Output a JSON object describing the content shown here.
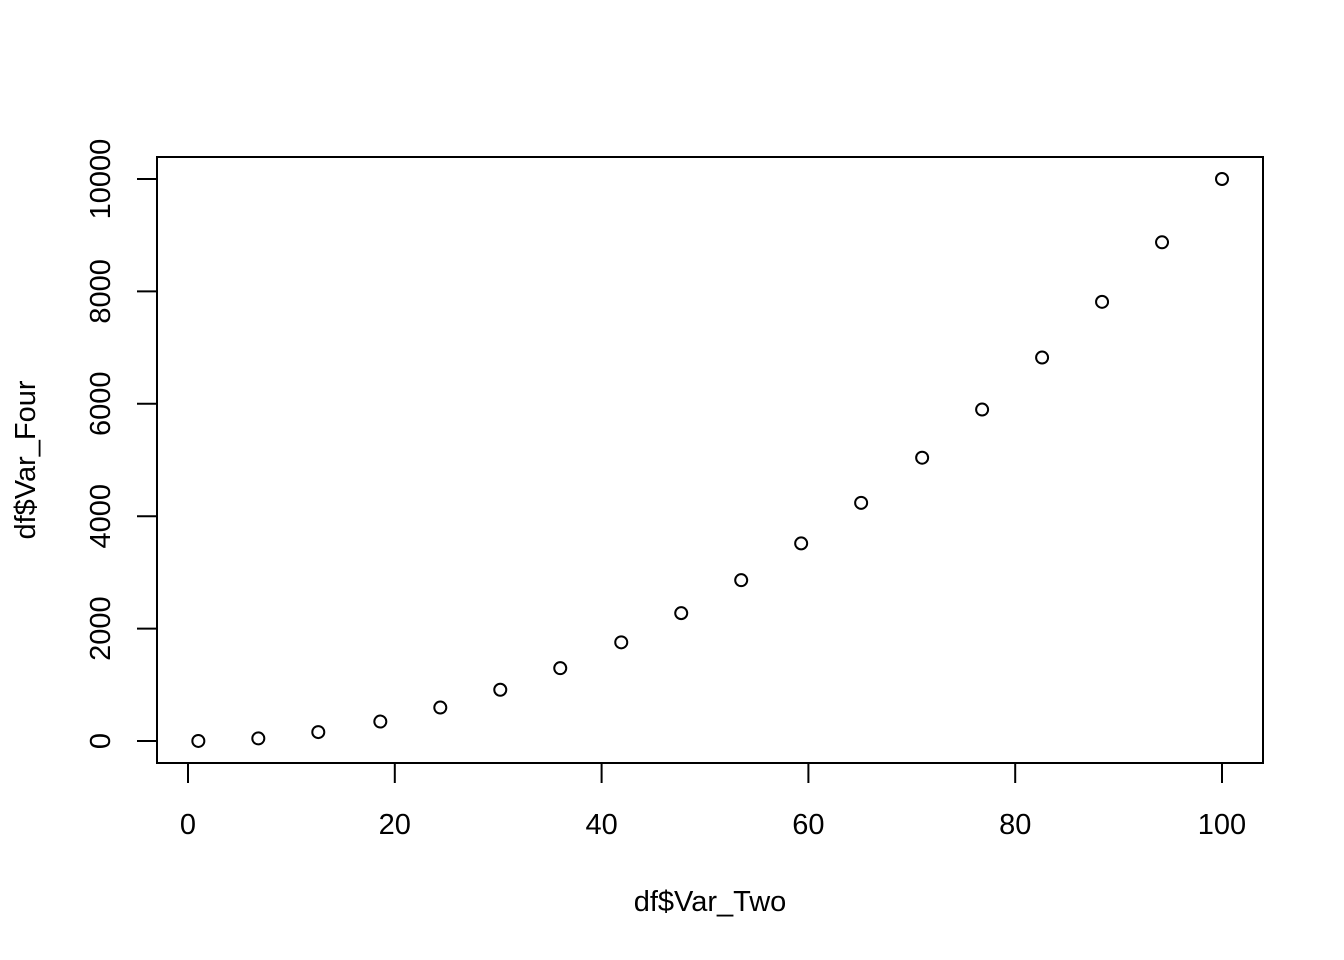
{
  "chart_data": {
    "type": "scatter",
    "title": "",
    "xlabel": "df$Var_Two",
    "ylabel": "df$Var_Four",
    "xlim": [
      0,
      100
    ],
    "ylim": [
      0,
      10000
    ],
    "x_ticks": [
      0,
      20,
      40,
      60,
      80,
      100
    ],
    "x_tick_labels": [
      "0",
      "20",
      "40",
      "60",
      "80",
      "100"
    ],
    "y_ticks": [
      0,
      2000,
      4000,
      6000,
      8000,
      10000
    ],
    "y_tick_labels": [
      "0",
      "2000",
      "4000",
      "6000",
      "8000",
      "10000"
    ],
    "grid": false,
    "marker": "open-circle",
    "colors": {
      "points": "#000000",
      "axes": "#000000",
      "background": "#ffffff"
    },
    "series": [
      {
        "x": [
          1,
          6.8,
          12.6,
          18.6,
          24.4,
          30.2,
          36.0,
          41.9,
          47.7,
          53.5,
          59.3,
          65.1,
          71.0,
          76.8,
          82.6,
          88.4,
          94.2,
          100
        ],
        "y": [
          1,
          46,
          159,
          346,
          595,
          912,
          1296,
          1756,
          2275,
          2862,
          3516,
          4238,
          5041,
          5898,
          6823,
          7814,
          8874,
          10000
        ]
      }
    ]
  }
}
